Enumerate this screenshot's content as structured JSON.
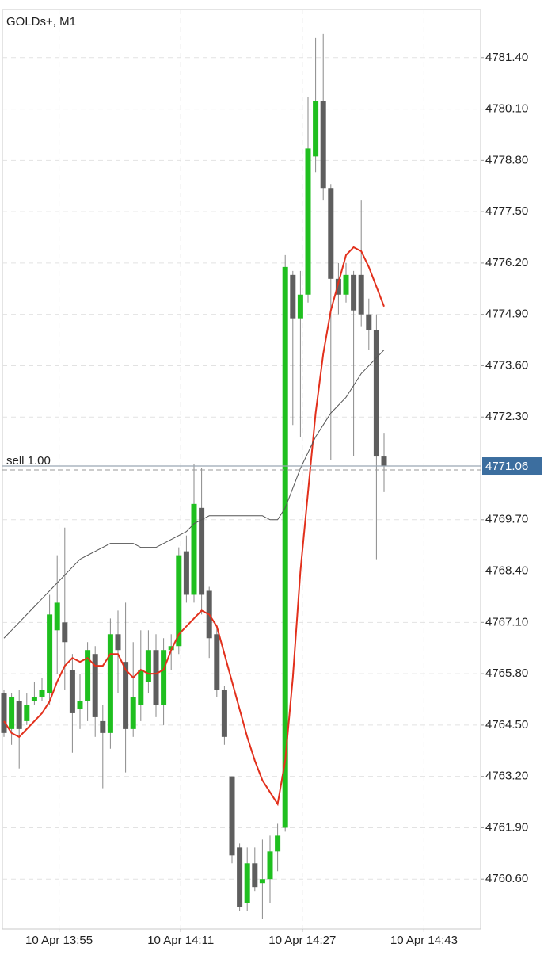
{
  "chart_data": {
    "type": "candlestick",
    "title": "GOLDs+, M1",
    "x": [
      "10 Apr 13:49",
      "10 Apr 13:50",
      "10 Apr 13:51",
      "10 Apr 13:52",
      "10 Apr 13:53",
      "10 Apr 13:54",
      "10 Apr 13:55",
      "10 Apr 13:56",
      "10 Apr 13:57",
      "10 Apr 13:58",
      "10 Apr 13:59",
      "10 Apr 14:00",
      "10 Apr 14:01",
      "10 Apr 14:02",
      "10 Apr 14:03",
      "10 Apr 14:04",
      "10 Apr 14:05",
      "10 Apr 14:06",
      "10 Apr 14:07",
      "10 Apr 14:08",
      "10 Apr 14:09",
      "10 Apr 14:10",
      "10 Apr 14:11",
      "10 Apr 14:12",
      "10 Apr 14:13",
      "10 Apr 14:14",
      "10 Apr 14:15",
      "10 Apr 14:16",
      "10 Apr 14:17",
      "10 Apr 14:18",
      "10 Apr 14:19",
      "10 Apr 14:20",
      "10 Apr 14:21",
      "10 Apr 14:22",
      "10 Apr 14:23",
      "10 Apr 14:24",
      "10 Apr 14:25",
      "10 Apr 14:26",
      "10 Apr 14:27",
      "10 Apr 14:28",
      "10 Apr 14:29",
      "10 Apr 14:30",
      "10 Apr 14:31",
      "10 Apr 14:32",
      "10 Apr 14:33",
      "10 Apr 14:34",
      "10 Apr 14:35",
      "10 Apr 14:36",
      "10 Apr 14:37",
      "10 Apr 14:38",
      "10 Apr 14:39"
    ],
    "open": [
      4765.3,
      4764.4,
      4765.1,
      4764.6,
      4765.1,
      4765.2,
      4765.3,
      4766.9,
      4767.1,
      4765.9,
      4764.9,
      4765.1,
      4766.3,
      4764.6,
      4764.3,
      4766.8,
      4766.1,
      4764.4,
      4765.0,
      4765.6,
      4766.4,
      4765.0,
      4766.4,
      4766.5,
      4768.9,
      4767.8,
      4770.0,
      4767.9,
      4766.8,
      4765.4,
      4763.2,
      4761.4,
      4760.0,
      4761.0,
      4760.5,
      4760.6,
      4761.3,
      4761.9,
      4775.9,
      4774.8,
      4775.4,
      4778.9,
      4780.3,
      4778.1,
      4775.8,
      4775.4,
      4775.9,
      4775.9,
      4774.9,
      4774.5,
      4771.3
    ],
    "high": [
      4765.4,
      4765.3,
      4765.4,
      4765.3,
      4765.6,
      4765.7,
      4767.8,
      4768.8,
      4769.5,
      4766.3,
      4765.8,
      4766.6,
      4766.5,
      4765.0,
      4767.2,
      4767.4,
      4767.6,
      4766.6,
      4766.9,
      4766.9,
      4766.8,
      4766.7,
      4766.8,
      4769.0,
      4769.3,
      4771.1,
      4771.0,
      4768.0,
      4767.0,
      4765.5,
      4763.2,
      4761.5,
      4761.4,
      4761.4,
      4761.6,
      4761.7,
      4762.0,
      4776.4,
      4776.0,
      4776.0,
      4780.4,
      4781.9,
      4782.0,
      4778.2,
      4776.2,
      4776.2,
      4776.0,
      4777.8,
      4775.3,
      4774.9,
      4771.9
    ],
    "low": [
      4764.2,
      4764.0,
      4763.4,
      4764.5,
      4765.0,
      4765.1,
      4765.0,
      4765.8,
      4765.4,
      4763.8,
      4764.4,
      4764.6,
      4764.2,
      4762.9,
      4763.9,
      4765.3,
      4763.3,
      4764.2,
      4764.6,
      4765.3,
      4764.7,
      4764.5,
      4765.9,
      4766.3,
      4767.6,
      4767.6,
      4767.3,
      4766.2,
      4765.2,
      4764.0,
      4761.0,
      4759.8,
      4759.8,
      4760.3,
      4759.6,
      4760.0,
      4760.8,
      4761.8,
      4772.1,
      4771.8,
      4775.2,
      4778.5,
      4777.8,
      4771.2,
      4774.9,
      4775.2,
      4771.3,
      4774.6,
      4774.0,
      4768.7,
      4770.4
    ],
    "close": [
      4764.3,
      4765.2,
      4764.4,
      4765.0,
      4765.2,
      4765.4,
      4767.3,
      4767.6,
      4766.6,
      4764.8,
      4765.1,
      4766.4,
      4764.7,
      4764.3,
      4766.8,
      4766.4,
      4764.4,
      4765.2,
      4765.9,
      4766.4,
      4765.0,
      4766.4,
      4766.5,
      4768.8,
      4767.8,
      4770.1,
      4767.8,
      4766.7,
      4765.4,
      4764.2,
      4761.2,
      4759.9,
      4761.0,
      4760.4,
      4760.6,
      4761.3,
      4761.7,
      4776.1,
      4774.8,
      4775.4,
      4779.1,
      4780.3,
      4778.1,
      4775.8,
      4775.4,
      4775.9,
      4775.0,
      4774.9,
      4774.5,
      4771.3,
      4771.06
    ],
    "up_color": "#1fbf1f",
    "down_color": "#5e5e5e",
    "lines": [
      {
        "color": "#e2301c",
        "values": [
          4764.6,
          4764.3,
          4764.2,
          4764.4,
          4764.6,
          4764.8,
          4765.1,
          4765.6,
          4766.0,
          4766.2,
          4766.1,
          4766.2,
          4766.0,
          4766.0,
          4766.3,
          4766.3,
          4765.9,
          4765.7,
          4765.9,
          4765.8,
          4765.8,
          4765.9,
          4766.4,
          4766.8,
          4767.0,
          4767.2,
          4767.4,
          4767.3,
          4767.0,
          4766.3,
          4765.6,
          4764.9,
          4764.2,
          4763.6,
          4763.1,
          4762.8,
          4762.5,
          4763.6,
          4765.7,
          4768.4,
          4770.4,
          4772.4,
          4773.9,
          4775.0,
          4775.7,
          4776.4,
          4776.6,
          4776.5,
          4776.1,
          4775.6,
          4775.1
        ]
      },
      {
        "color": "#555555",
        "values": [
          4766.7,
          4766.9,
          4767.1,
          4767.3,
          4767.5,
          4767.7,
          4767.9,
          4768.1,
          4768.3,
          4768.5,
          4768.7,
          4768.8,
          4768.9,
          4769.0,
          4769.1,
          4769.1,
          4769.1,
          4769.1,
          4769.0,
          4769.0,
          4769.0,
          4769.1,
          4769.2,
          4769.3,
          4769.4,
          4769.6,
          4769.7,
          4769.8,
          4769.8,
          4769.8,
          4769.8,
          4769.8,
          4769.8,
          4769.8,
          4769.8,
          4769.7,
          4769.7,
          4770.0,
          4770.5,
          4771.0,
          4771.4,
          4771.8,
          4772.1,
          4772.4,
          4772.6,
          4772.8,
          4773.1,
          4773.4,
          4773.6,
          4773.8,
          4774.0
        ]
      }
    ],
    "ylim": [
      4759.34,
      4782.62
    ],
    "yticks": [
      {
        "value": 4781.4,
        "label": "4781.40"
      },
      {
        "value": 4780.1,
        "label": "4780.10"
      },
      {
        "value": 4778.8,
        "label": "4778.80"
      },
      {
        "value": 4777.5,
        "label": "4777.50"
      },
      {
        "value": 4776.2,
        "label": "4776.20"
      },
      {
        "value": 4774.9,
        "label": "4774.90"
      },
      {
        "value": 4773.6,
        "label": "4773.60"
      },
      {
        "value": 4772.3,
        "label": "4772.30"
      },
      {
        "value": 4769.7,
        "label": "4769.70"
      },
      {
        "value": 4768.4,
        "label": "4768.40"
      },
      {
        "value": 4767.1,
        "label": "4767.10"
      },
      {
        "value": 4765.8,
        "label": "4765.80"
      },
      {
        "value": 4764.5,
        "label": "4764.50"
      },
      {
        "value": 4763.2,
        "label": "4763.20"
      },
      {
        "value": 4761.9,
        "label": "4761.90"
      },
      {
        "value": 4760.6,
        "label": "4760.60"
      }
    ],
    "xticks": [
      "10 Apr 13:55",
      "10 Apr 14:11",
      "10 Apr 14:27",
      "10 Apr 14:43"
    ],
    "last_price": 4771.06,
    "last_price_color": "#3c6e9f",
    "order_label": "sell 1.00",
    "grid": true
  }
}
